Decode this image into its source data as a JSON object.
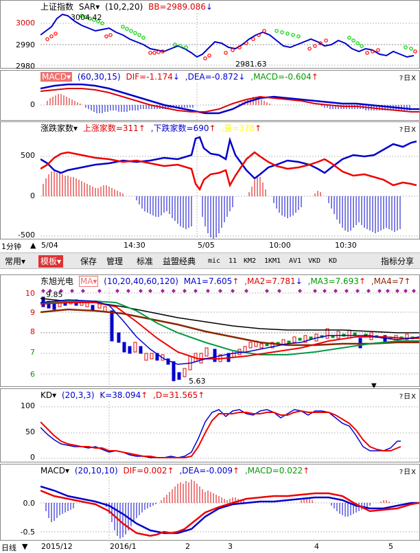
{
  "index_chart": {
    "name": "上证指数",
    "indicator": "SAR▾",
    "params": "(10,2,20)",
    "value_label": "BB=2989.086",
    "arrow": "↓",
    "y_ticks": [
      "3000",
      "2990",
      "2980"
    ],
    "high_label": "3004.42",
    "low_label": "2981.63"
  },
  "index_macd": {
    "name": "MACD▾",
    "params": "(60,30,15)",
    "dif": "DIF=-1.174",
    "dif_arrow": "↓",
    "dea": ",DEA=-0.872",
    "dea_arrow": "↓",
    "macd": ",MACD=-0.604",
    "macd_arrow": "↑",
    "y_ticks": [
      "0"
    ]
  },
  "breadth": {
    "name": "涨跌家数▾",
    "up": "上涨家数=311",
    "up_arrow": "↑",
    "down": ",下跌家数=690",
    "down_arrow": "↑",
    "extra": ",量=378",
    "extra_arrow": "↑",
    "y_ticks": [
      "500",
      "0",
      "-500"
    ]
  },
  "intraday_axis": {
    "period": "1分钟",
    "labels": [
      "5/04",
      "14:30",
      "5/05",
      "10:00",
      "10:30"
    ]
  },
  "toolbar": {
    "items": [
      "常用▾",
      "模板▾",
      "保存",
      "管理",
      "标准",
      "益盟经典",
      "mic",
      "11",
      "KM2",
      "1KM1",
      "AV1",
      "VKD",
      "KD"
    ],
    "right": "指标分享"
  },
  "stock_chart": {
    "name": "东旭光电",
    "indicator": "MA▾",
    "params": "(10,20,40,60,120)",
    "ma1": "MA1=7.605",
    "ma1_arrow": "↑",
    "ma2": ",MA2=7.781",
    "ma2_arrow": "↓",
    "ma3": ",MA3=7.693",
    "ma3_arrow": "↑",
    "ma4": ",MA4=7",
    "ma4_arrow": "↑",
    "y_ticks": [
      "10",
      "9",
      "8",
      "7",
      "6"
    ],
    "high_label": "9.85",
    "low_label": "5.63"
  },
  "kd": {
    "name": "KD▾",
    "params": "(20,3,3)",
    "k": "K=38.094",
    "k_arrow": "↑",
    "d": ",D=31.565",
    "d_arrow": "↑",
    "y_ticks": [
      "100",
      "50",
      "0"
    ]
  },
  "stock_macd": {
    "name": "MACD▾",
    "params": "(20,10,10)",
    "dif": "DIF=0.002",
    "dif_arrow": "↑",
    "dea": ",DEA=-0.009",
    "dea_arrow": "↑",
    "macd": ",MACD=0.022",
    "macd_arrow": "↑",
    "y_ticks": [
      "0.0",
      "-0.5"
    ]
  },
  "daily_axis": {
    "period": "日线",
    "labels": [
      "2015/12",
      "2016/1",
      "2",
      "3",
      "4",
      "5"
    ]
  },
  "panel_controls": "?日X",
  "colors": {
    "up": "#ff0000",
    "down": "#0000cc",
    "sar_green": "#00cc00",
    "ma_black": "#000000",
    "ma_green": "#009944",
    "ma_brown": "#8b2500"
  }
}
